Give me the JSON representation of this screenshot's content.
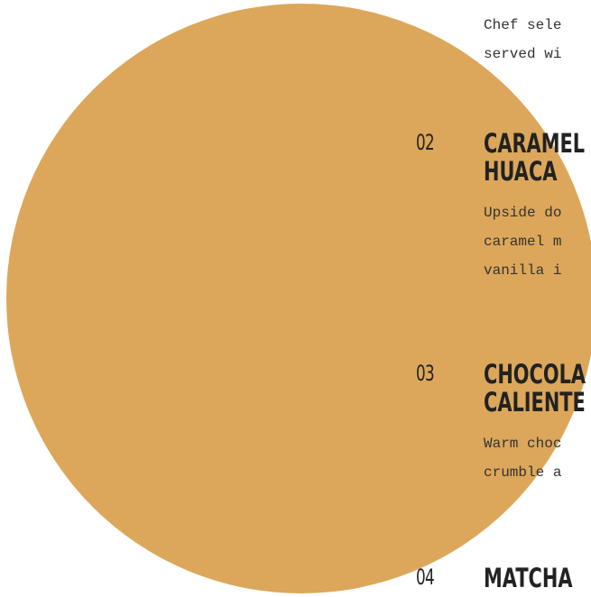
{
  "items": [
    {
      "number": "",
      "title": [],
      "description": [
        "Chef sele",
        "served wi"
      ]
    },
    {
      "number": "02",
      "title": [
        "CARAMEL",
        "HUACA"
      ],
      "description": [
        "Upside do",
        "caramel m",
        "vanilla i"
      ]
    },
    {
      "number": "03",
      "title": [
        "CHOCOLA",
        "CALIENTE"
      ],
      "description": [
        "Warm choc",
        "crumble a"
      ]
    },
    {
      "number": "04",
      "title": [
        "MATCHA"
      ],
      "description": []
    }
  ],
  "colors": {
    "circle": "#DCA75A",
    "text": "#222222",
    "background": "#FFFFFF"
  }
}
